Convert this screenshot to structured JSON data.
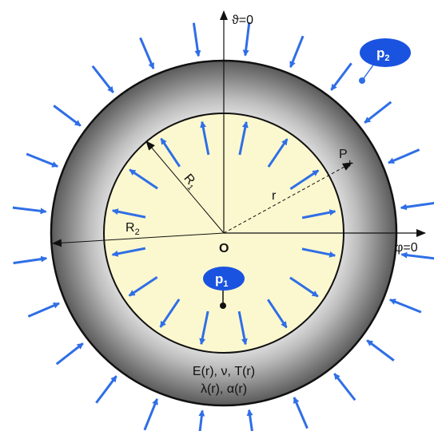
{
  "labels": {
    "theta_axis": "ϑ=0",
    "phi_axis": "φ=0",
    "origin": "O",
    "point": "P",
    "radius_r": "r",
    "radius_R1": "R",
    "radius_R1_sub": "1",
    "radius_R2": "R",
    "radius_R2_sub": "2",
    "props_line1": "E(r), ν, T(r)",
    "props_line2": "λ(r), α(r)"
  },
  "bubbles": {
    "p1": {
      "main": "p",
      "sub": "1"
    },
    "p2": {
      "main": "p",
      "sub": "2"
    }
  },
  "colors": {
    "inner_fill": "#fbf8cf",
    "arrow_blue": "#2f6ee6",
    "bubble_blue": "#1a53e0",
    "ring_light": "#f2f2f2",
    "ring_dark": "#555555"
  }
}
